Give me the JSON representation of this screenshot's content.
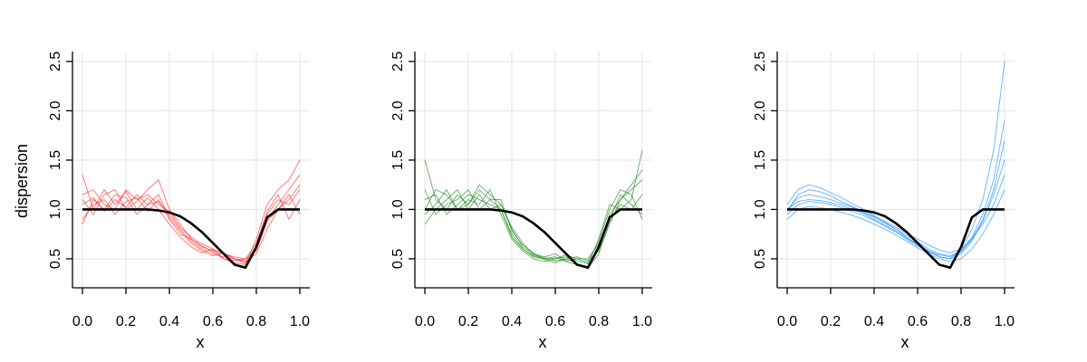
{
  "chart_data": [
    {
      "type": "line",
      "x": [
        0,
        0.05,
        0.1,
        0.15,
        0.2,
        0.25,
        0.3,
        0.35,
        0.4,
        0.45,
        0.5,
        0.55,
        0.6,
        0.65,
        0.7,
        0.75,
        0.8,
        0.85,
        0.9,
        0.95,
        1
      ],
      "xlabel": "x",
      "ylabel": "dispersion",
      "xlim": [
        -0.046,
        1.046
      ],
      "ylim": [
        0.206,
        2.6
      ],
      "xticks": [
        {
          "value": 0,
          "label": "0.0"
        },
        0.2,
        0.4,
        0.6,
        0.8,
        {
          "value": 1,
          "label": "1.0"
        }
      ],
      "yticks": [
        0.5,
        {
          "value": 1,
          "label": "1.0"
        },
        1.5,
        {
          "value": 2,
          "label": "2.0"
        },
        2.5
      ],
      "grid": true,
      "series": [
        {
          "color": "#ff3030",
          "values": [
            1.05,
            1.12,
            0.98,
            1.1,
            1.02,
            1.15,
            1.05,
            1.08,
            0.95,
            0.8,
            0.68,
            0.6,
            0.55,
            0.52,
            0.5,
            0.48,
            0.62,
            0.95,
            1.1,
            1.05,
            1.2
          ]
        },
        {
          "color": "#ff3030",
          "values": [
            1.35,
            1.0,
            1.2,
            1.05,
            1.18,
            1.0,
            1.12,
            1.0,
            0.85,
            0.72,
            0.62,
            0.56,
            0.6,
            0.5,
            0.46,
            0.44,
            0.7,
            1.05,
            1.2,
            1.3,
            1.5
          ]
        },
        {
          "color": "#ff3030",
          "values": [
            0.9,
            1.05,
            1.1,
            0.95,
            1.08,
            1.12,
            0.98,
            1.1,
            0.9,
            0.75,
            0.7,
            0.62,
            0.58,
            0.55,
            0.52,
            0.5,
            0.58,
            0.88,
            1.0,
            1.15,
            0.95
          ]
        },
        {
          "color": "#ff3030",
          "values": [
            1.1,
            0.95,
            1.15,
            1.2,
            1.0,
            1.08,
            1.2,
            1.3,
            1.0,
            0.85,
            0.7,
            0.63,
            0.57,
            0.5,
            0.48,
            0.5,
            0.66,
            0.98,
            1.15,
            0.9,
            1.1
          ]
        },
        {
          "color": "#ff3030",
          "values": [
            0.85,
            1.1,
            1.0,
            1.15,
            1.12,
            0.95,
            1.05,
            1.15,
            0.92,
            0.78,
            0.66,
            0.58,
            0.53,
            0.56,
            0.5,
            0.45,
            0.6,
            0.9,
            1.05,
            1.2,
            1.35
          ]
        },
        {
          "color": "#ff3030",
          "values": [
            1.15,
            1.2,
            1.05,
            1.0,
            1.2,
            1.1,
            1.15,
            1.05,
            0.98,
            0.82,
            0.72,
            0.65,
            0.6,
            0.55,
            0.5,
            0.47,
            0.55,
            0.8,
            1.0,
            1.1,
            1.25
          ]
        },
        {
          "color": "#000000",
          "values": [
            1,
            1,
            1,
            1,
            1,
            1,
            1,
            0.99,
            0.97,
            0.93,
            0.86,
            0.77,
            0.66,
            0.55,
            0.44,
            0.41,
            0.62,
            0.92,
            1,
            1,
            1
          ]
        }
      ]
    },
    {
      "type": "line",
      "x": [
        0,
        0.05,
        0.1,
        0.15,
        0.2,
        0.25,
        0.3,
        0.35,
        0.4,
        0.45,
        0.5,
        0.55,
        0.6,
        0.65,
        0.7,
        0.75,
        0.8,
        0.85,
        0.9,
        0.95,
        1
      ],
      "xlabel": "x",
      "xlim": [
        -0.046,
        1.046
      ],
      "ylim": [
        0.206,
        2.6
      ],
      "xticks": [
        {
          "value": 0,
          "label": "0.0"
        },
        0.2,
        0.4,
        0.6,
        0.8,
        {
          "value": 1,
          "label": "1.0"
        }
      ],
      "yticks": [
        0.5,
        {
          "value": 1,
          "label": "1.0"
        },
        1.5,
        {
          "value": 2,
          "label": "2.0"
        },
        2.5
      ],
      "grid": true,
      "series": [
        {
          "color": "#228b22",
          "values": [
            1.5,
            1.1,
            1.0,
            1.15,
            1.05,
            1.2,
            1.1,
            1.0,
            0.75,
            0.6,
            0.52,
            0.5,
            0.48,
            0.5,
            0.45,
            0.42,
            0.6,
            0.95,
            1.1,
            1.2,
            1.3
          ]
        },
        {
          "color": "#228b22",
          "values": [
            1.0,
            1.2,
            1.15,
            1.0,
            1.1,
            1.05,
            1.2,
            0.95,
            0.7,
            0.58,
            0.5,
            0.47,
            0.5,
            0.52,
            0.48,
            0.45,
            0.7,
            1.05,
            1.0,
            1.1,
            1.6
          ]
        },
        {
          "color": "#228b22",
          "values": [
            0.85,
            1.0,
            1.1,
            1.2,
            1.0,
            1.15,
            1.0,
            1.05,
            0.8,
            0.62,
            0.55,
            0.52,
            0.55,
            0.48,
            0.5,
            0.5,
            0.65,
            0.9,
            1.15,
            1.05,
            0.95
          ]
        },
        {
          "color": "#228b22",
          "values": [
            1.2,
            0.95,
            1.05,
            1.1,
            1.2,
            1.0,
            1.1,
            1.1,
            0.78,
            0.64,
            0.56,
            0.49,
            0.46,
            0.5,
            0.52,
            0.48,
            0.58,
            0.85,
            1.1,
            1.25,
            1.4
          ]
        },
        {
          "color": "#228b22",
          "values": [
            1.1,
            1.15,
            0.95,
            1.05,
            1.15,
            1.1,
            1.05,
            1.0,
            0.72,
            0.6,
            0.53,
            0.5,
            0.52,
            0.47,
            0.44,
            0.4,
            0.55,
            0.88,
            1.05,
            1.0,
            1.15
          ]
        },
        {
          "color": "#228b22",
          "values": [
            0.95,
            1.05,
            1.2,
            1.0,
            1.05,
            1.25,
            1.15,
            1.05,
            0.82,
            0.66,
            0.54,
            0.51,
            0.5,
            0.54,
            0.5,
            0.46,
            0.68,
            1.0,
            1.2,
            1.15,
            0.9
          ]
        },
        {
          "color": "#000000",
          "values": [
            1,
            1,
            1,
            1,
            1,
            1,
            1,
            0.99,
            0.97,
            0.93,
            0.86,
            0.77,
            0.66,
            0.55,
            0.44,
            0.41,
            0.62,
            0.92,
            1,
            1,
            1
          ]
        }
      ]
    },
    {
      "type": "line",
      "x": [
        0,
        0.05,
        0.1,
        0.15,
        0.2,
        0.25,
        0.3,
        0.35,
        0.4,
        0.45,
        0.5,
        0.55,
        0.6,
        0.65,
        0.7,
        0.75,
        0.8,
        0.85,
        0.9,
        0.95,
        1
      ],
      "xlabel": "x",
      "xlim": [
        -0.046,
        1.046
      ],
      "ylim": [
        0.206,
        2.6
      ],
      "xticks": [
        {
          "value": 0,
          "label": "0.0"
        },
        0.2,
        0.4,
        0.6,
        0.8,
        {
          "value": 1,
          "label": "1.0"
        }
      ],
      "yticks": [
        0.5,
        {
          "value": 1,
          "label": "1.0"
        },
        1.5,
        {
          "value": 2,
          "label": "2.0"
        },
        2.5
      ],
      "grid": true,
      "series": [
        {
          "color": "#1e90ff",
          "values": [
            1.0,
            1.12,
            1.15,
            1.13,
            1.1,
            1.06,
            1.02,
            0.97,
            0.92,
            0.86,
            0.8,
            0.74,
            0.67,
            0.6,
            0.55,
            0.53,
            0.58,
            0.72,
            0.95,
            1.3,
            1.9
          ]
        },
        {
          "color": "#1e90ff",
          "values": [
            0.95,
            1.05,
            1.08,
            1.07,
            1.05,
            1.02,
            0.98,
            0.94,
            0.89,
            0.83,
            0.77,
            0.7,
            0.63,
            0.57,
            0.52,
            0.5,
            0.55,
            0.68,
            0.88,
            1.15,
            1.5
          ]
        },
        {
          "color": "#1e90ff",
          "values": [
            1.05,
            1.2,
            1.25,
            1.22,
            1.17,
            1.12,
            1.06,
            1.0,
            0.94,
            0.87,
            0.8,
            0.72,
            0.65,
            0.58,
            0.52,
            0.5,
            0.6,
            0.8,
            1.1,
            1.6,
            2.5
          ]
        },
        {
          "color": "#1e90ff",
          "values": [
            0.9,
            1.0,
            1.03,
            1.02,
            1.0,
            0.97,
            0.94,
            0.9,
            0.85,
            0.8,
            0.74,
            0.68,
            0.61,
            0.55,
            0.5,
            0.47,
            0.5,
            0.6,
            0.75,
            0.95,
            1.2
          ]
        },
        {
          "color": "#1e90ff",
          "values": [
            1.0,
            1.08,
            1.1,
            1.09,
            1.07,
            1.04,
            1.0,
            0.96,
            0.9,
            0.84,
            0.78,
            0.71,
            0.64,
            0.58,
            0.54,
            0.52,
            0.57,
            0.7,
            0.9,
            1.2,
            1.7
          ]
        },
        {
          "color": "#1e90ff",
          "values": [
            0.98,
            1.15,
            1.2,
            1.18,
            1.14,
            1.08,
            1.03,
            0.98,
            0.93,
            0.88,
            0.82,
            0.76,
            0.7,
            0.64,
            0.59,
            0.56,
            0.6,
            0.7,
            0.85,
            1.05,
            1.35
          ]
        },
        {
          "color": "#000000",
          "values": [
            1,
            1,
            1,
            1,
            1,
            1,
            1,
            0.99,
            0.97,
            0.93,
            0.86,
            0.77,
            0.66,
            0.55,
            0.44,
            0.41,
            0.62,
            0.92,
            1,
            1,
            1
          ]
        }
      ]
    }
  ]
}
